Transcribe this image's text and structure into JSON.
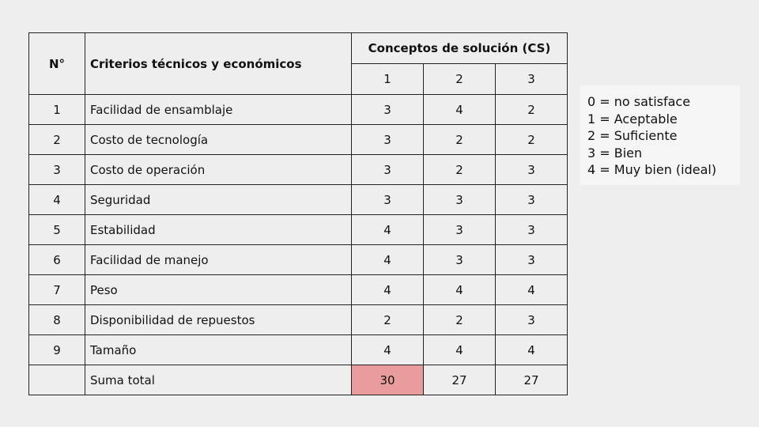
{
  "table": {
    "header_n": "N°",
    "header_criteria": "Criterios técnicos y económicos",
    "header_concepts": "Conceptos de solución (CS)",
    "concepts": [
      "1",
      "2",
      "3"
    ],
    "rows": [
      {
        "n": "1",
        "criterion": "Facilidad de ensamblaje",
        "scores": [
          "3",
          "4",
          "2"
        ]
      },
      {
        "n": "2",
        "criterion": "Costo de tecnología",
        "scores": [
          "3",
          "2",
          "2"
        ]
      },
      {
        "n": "3",
        "criterion": "Costo de operación",
        "scores": [
          "3",
          "2",
          "3"
        ]
      },
      {
        "n": "4",
        "criterion": "Seguridad",
        "scores": [
          "3",
          "3",
          "3"
        ]
      },
      {
        "n": "5",
        "criterion": "Estabilidad",
        "scores": [
          "4",
          "3",
          "3"
        ]
      },
      {
        "n": "6",
        "criterion": "Facilidad de manejo",
        "scores": [
          "4",
          "3",
          "3"
        ]
      },
      {
        "n": "7",
        "criterion": "Peso",
        "scores": [
          "4",
          "4",
          "4"
        ]
      },
      {
        "n": "8",
        "criterion": "Disponibilidad de repuestos",
        "scores": [
          "2",
          "2",
          "3"
        ]
      },
      {
        "n": "9",
        "criterion": "Tamaño",
        "scores": [
          "4",
          "4",
          "4"
        ]
      }
    ],
    "total_label": "Suma total",
    "totals": [
      "30",
      "27",
      "27"
    ],
    "highlight_color": "#e89c9c"
  },
  "legend": [
    "0 = no satisface",
    "1 = Aceptable",
    "2 = Suficiente",
    "3 = Bien",
    "4 = Muy bien (ideal)"
  ]
}
